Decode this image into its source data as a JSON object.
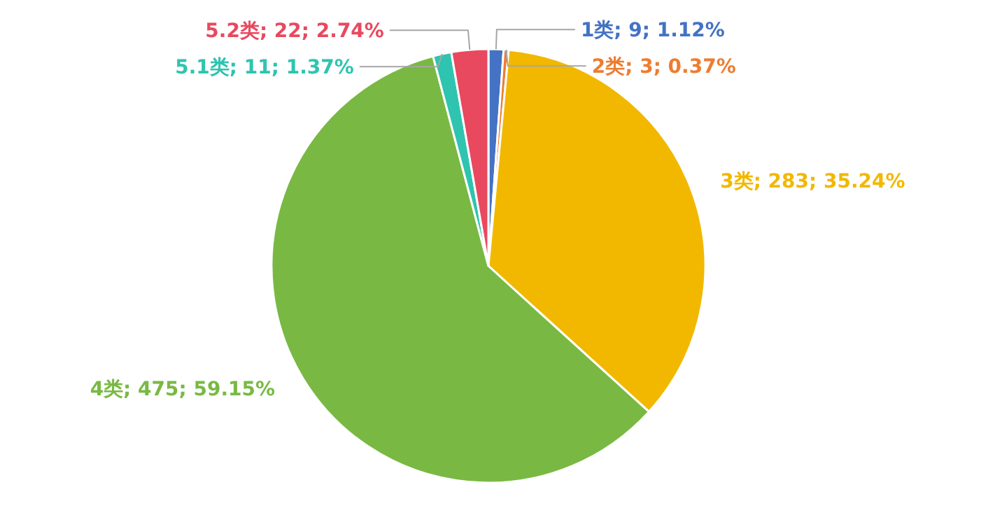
{
  "chart_data": {
    "type": "pie",
    "categories": [
      "1类",
      "2类",
      "3类",
      "4类",
      "5.1类",
      "5.2类"
    ],
    "values": [
      9,
      3,
      283,
      475,
      11,
      22
    ],
    "value_labels": [
      "9; 1.12%",
      "3; 0.37%",
      "283; 35.24%",
      "475; 59.15%",
      "11; 1.37%",
      "22; 2.74%"
    ],
    "colors": [
      "#4472c4",
      "#ed7d31",
      "#f2b800",
      "#79b943",
      "#2ec4b0",
      "#e8495f"
    ]
  }
}
